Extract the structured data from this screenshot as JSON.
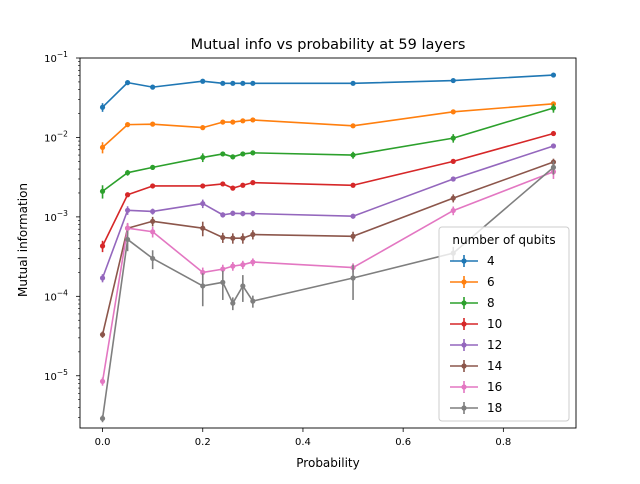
{
  "chart_data": {
    "type": "line",
    "title": "Mutual info vs probability at 59 layers",
    "xlabel": "Probability",
    "ylabel": "Mutual information",
    "xlim": [
      -0.045,
      0.945
    ],
    "ylim": [
      2.2e-06,
      0.1
    ],
    "yscale": "log",
    "grid": false,
    "x_ticks": [
      {
        "value": 0.0,
        "label": "0.0"
      },
      {
        "value": 0.2,
        "label": "0.2"
      },
      {
        "value": 0.4,
        "label": "0.4"
      },
      {
        "value": 0.6,
        "label": "0.6"
      },
      {
        "value": 0.8,
        "label": "0.8"
      }
    ],
    "y_ticks": [
      {
        "value": 1e-05,
        "base": "10",
        "exp": "−5"
      },
      {
        "value": 0.0001,
        "base": "10",
        "exp": "−4"
      },
      {
        "value": 0.001,
        "base": "10",
        "exp": "−3"
      },
      {
        "value": 0.01,
        "base": "10",
        "exp": "−2"
      },
      {
        "value": 0.1,
        "base": "10",
        "exp": "−1"
      }
    ],
    "legend": {
      "title": "number of qubits",
      "placement": "lower right"
    },
    "series": [
      {
        "name": "4",
        "color": "#1f77b4",
        "x": [
          0.0,
          0.05,
          0.1,
          0.2,
          0.24,
          0.26,
          0.28,
          0.3,
          0.5,
          0.7,
          0.9
        ],
        "y": [
          0.024,
          0.049,
          0.043,
          0.051,
          0.048,
          0.048,
          0.048,
          0.048,
          0.048,
          0.052,
          0.061
        ],
        "err": [
          0.003,
          0.002,
          0.002,
          0.002,
          0.002,
          0.002,
          0.002,
          0.002,
          0.002,
          0.002,
          0.003
        ]
      },
      {
        "name": "6",
        "color": "#ff7f0e",
        "x": [
          0.0,
          0.05,
          0.1,
          0.2,
          0.24,
          0.26,
          0.28,
          0.3,
          0.5,
          0.7,
          0.9
        ],
        "y": [
          0.0075,
          0.0145,
          0.0147,
          0.0133,
          0.0156,
          0.0156,
          0.0162,
          0.0166,
          0.014,
          0.021,
          0.0265
        ],
        "err": [
          0.0012,
          0.0008,
          0.0008,
          0.0008,
          0.0008,
          0.0008,
          0.0008,
          0.0008,
          0.0008,
          0.0013,
          0.0015
        ]
      },
      {
        "name": "8",
        "color": "#2ca02c",
        "x": [
          0.0,
          0.05,
          0.1,
          0.2,
          0.24,
          0.26,
          0.28,
          0.3,
          0.5,
          0.7,
          0.9
        ],
        "y": [
          0.0021,
          0.0036,
          0.0042,
          0.0056,
          0.0062,
          0.0057,
          0.0062,
          0.0064,
          0.006,
          0.0098,
          0.0235
        ],
        "err": [
          0.0004,
          0.0003,
          0.0003,
          0.0007,
          0.0004,
          0.0004,
          0.0004,
          0.0004,
          0.0006,
          0.0012,
          0.003
        ]
      },
      {
        "name": "10",
        "color": "#d62728",
        "x": [
          0.0,
          0.05,
          0.1,
          0.2,
          0.24,
          0.26,
          0.28,
          0.3,
          0.5,
          0.7,
          0.9
        ],
        "y": [
          0.00043,
          0.0019,
          0.00245,
          0.00245,
          0.0026,
          0.0023,
          0.0025,
          0.0027,
          0.0025,
          0.005,
          0.0112
        ],
        "err": [
          7e-05,
          0.0001,
          0.00015,
          0.00015,
          0.00015,
          0.00015,
          0.00015,
          0.00015,
          0.00015,
          0.0003,
          0.0007
        ]
      },
      {
        "name": "12",
        "color": "#9467bd",
        "x": [
          0.0,
          0.05,
          0.1,
          0.2,
          0.24,
          0.26,
          0.28,
          0.3,
          0.5,
          0.7,
          0.9
        ],
        "y": [
          0.00017,
          0.00121,
          0.00117,
          0.00147,
          0.00106,
          0.00111,
          0.0011,
          0.0011,
          0.00102,
          0.003,
          0.0078
        ],
        "err": [
          2e-05,
          0.00015,
          0.0001,
          0.00018,
          8e-05,
          8e-05,
          8e-05,
          8e-05,
          7e-05,
          0.0002,
          0.0005
        ]
      },
      {
        "name": "14",
        "color": "#8c564b",
        "x": [
          0.0,
          0.05,
          0.1,
          0.2,
          0.24,
          0.26,
          0.28,
          0.3,
          0.5,
          0.7,
          0.9
        ],
        "y": [
          3.3e-05,
          0.00072,
          0.00088,
          0.00072,
          0.00055,
          0.00054,
          0.00054,
          0.0006,
          0.00057,
          0.00172,
          0.0049
        ],
        "err": [
          3e-06,
          0.0001,
          0.00012,
          0.00015,
          8e-05,
          8e-05,
          8e-05,
          8e-05,
          8e-05,
          0.0002,
          0.0005
        ]
      },
      {
        "name": "16",
        "color": "#e377c2",
        "x": [
          0.0,
          0.05,
          0.1,
          0.2,
          0.24,
          0.26,
          0.28,
          0.3,
          0.5,
          0.7,
          0.9
        ],
        "y": [
          8.5e-06,
          0.00072,
          0.00065,
          0.0002,
          0.00022,
          0.00024,
          0.00025,
          0.00027,
          0.00023,
          0.0012,
          0.0037
        ],
        "err": [
          1e-06,
          0.00012,
          0.0001,
          3e-05,
          3e-05,
          3e-05,
          3e-05,
          3e-05,
          3e-05,
          0.00015,
          0.0007
        ]
      },
      {
        "name": "18",
        "color": "#7f7f7f",
        "x": [
          0.0,
          0.05,
          0.1,
          0.2,
          0.24,
          0.26,
          0.28,
          0.3,
          0.5,
          0.7,
          0.9
        ],
        "y": [
          2.9e-06,
          0.00052,
          0.0003,
          0.000135,
          0.00015,
          8.2e-05,
          0.000135,
          8.7e-05,
          0.00017,
          0.00035,
          0.0042
        ],
        "err": [
          3e-07,
          0.00015,
          8e-05,
          6e-05,
          6e-05,
          1.5e-05,
          5e-05,
          1.5e-05,
          8e-05,
          7e-05,
          0.0008
        ]
      }
    ]
  }
}
